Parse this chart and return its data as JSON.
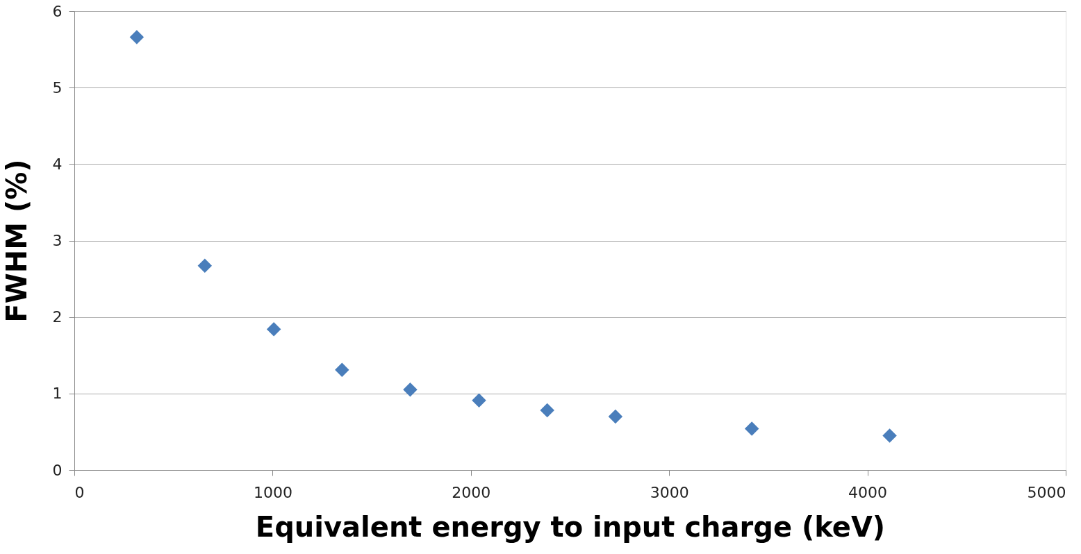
{
  "chart_data": {
    "type": "scatter",
    "xlabel": "Equivalent energy to input charge (keV)",
    "ylabel": "FWHM (%)",
    "x": [
      315,
      658,
      1006,
      1350,
      1694,
      2041,
      2385,
      2729,
      3417,
      4112
    ],
    "series": [
      {
        "color": "#4a7ebb",
        "values": [
          5.66,
          2.67,
          1.84,
          1.31,
          1.05,
          0.91,
          0.78,
          0.7,
          0.54,
          0.45
        ]
      }
    ],
    "xlim": [
      0,
      5000
    ],
    "xticks": [
      0,
      1000,
      2000,
      3000,
      4000,
      5000
    ],
    "ylim": [
      0,
      6
    ],
    "yticks": [
      0,
      1,
      2,
      3,
      4,
      5,
      6
    ],
    "grid": "y",
    "marker": "diamond"
  }
}
